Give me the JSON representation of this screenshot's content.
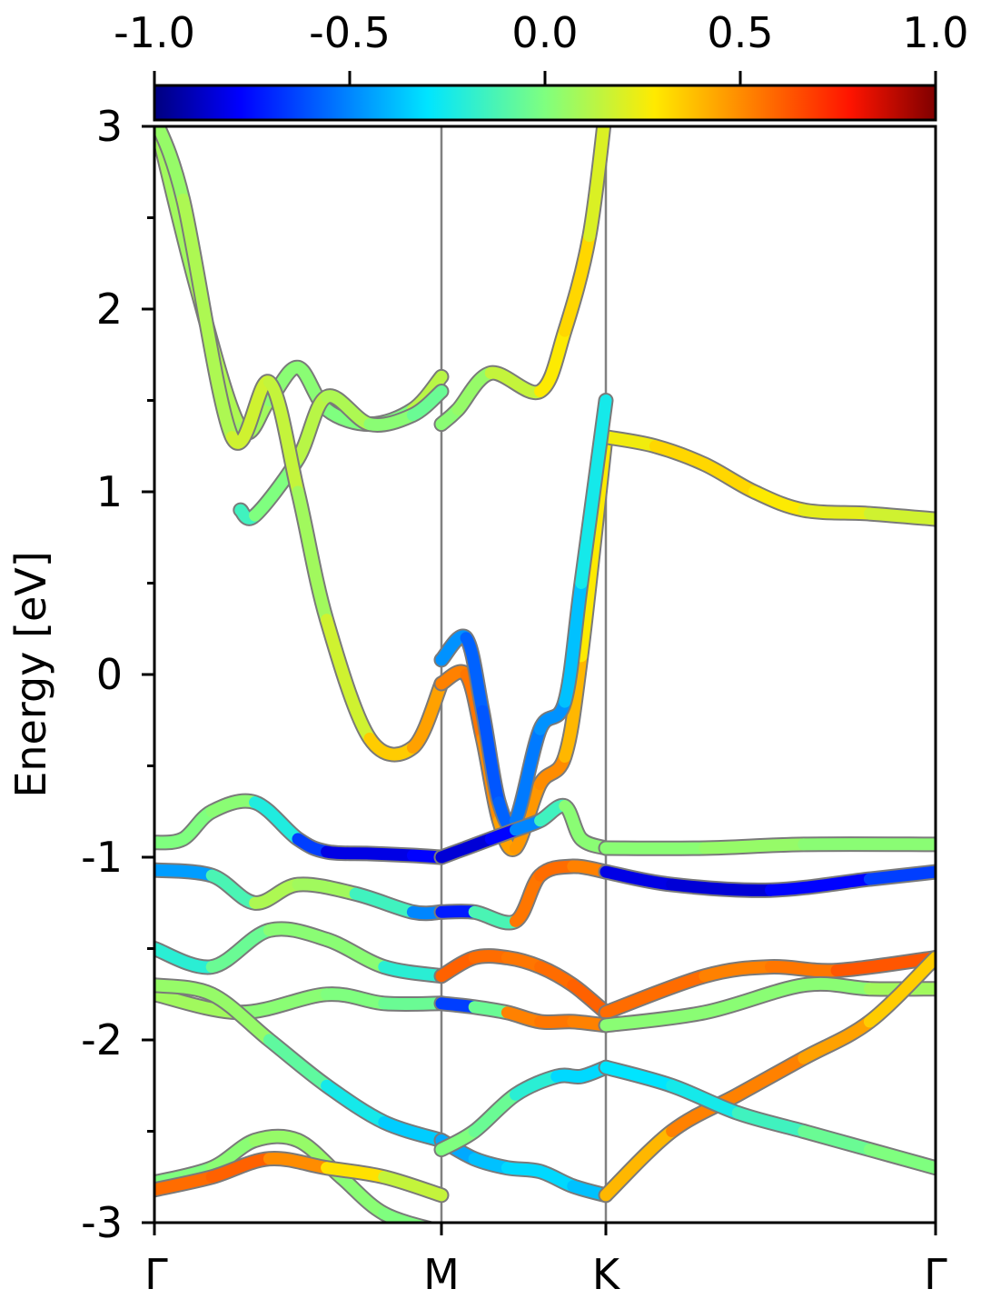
{
  "chart_data": {
    "type": "line",
    "ylabel": "Energy [eV]",
    "xlabel": "",
    "ylim": [
      -3,
      3
    ],
    "y_ticks": [
      "3",
      "2",
      "1",
      "0",
      "-1",
      "-2",
      "-3"
    ],
    "k_path": [
      "Γ",
      "M",
      "K",
      "Γ"
    ],
    "grid": false,
    "colorbar": {
      "colormap": "jet",
      "range": [
        -1.0,
        1.0
      ],
      "ticks": [
        "-1.0",
        "-0.5",
        "0.0",
        "0.5",
        "1.0"
      ]
    },
    "series": [
      {
        "k": [
          0,
          0.15,
          0.3,
          0.4,
          0.5,
          0.6,
          0.75,
          0.9,
          1
        ],
        "energy": [
          3.05,
          2.1,
          1.35,
          1.5,
          1.68,
          1.45,
          1.37,
          1.45,
          1.63
        ],
        "spin": [
          0.05,
          0.1,
          0.1,
          0.05,
          0,
          0.05,
          -0.05,
          0.05,
          0.2
        ]
      },
      {
        "k": [
          0.3,
          0.35,
          0.5,
          0.6,
          0.75,
          0.9,
          1.0
        ],
        "energy": [
          0.9,
          0.87,
          1.18,
          1.52,
          1.37,
          1.42,
          1.55
        ],
        "spin": [
          -0.2,
          -0.1,
          0.1,
          0.15,
          0.05,
          0,
          -0.1
        ]
      },
      {
        "k": [
          1.0,
          1.1,
          1.3,
          1.6,
          1.75,
          1.9,
          2.0
        ],
        "energy": [
          1.37,
          1.45,
          1.65,
          1.55,
          1.88,
          2.4,
          3.1
        ],
        "spin": [
          0.05,
          0,
          0.1,
          0.2,
          0.35,
          0.3,
          0.1
        ]
      },
      {
        "k": [
          0,
          0.1,
          0.27,
          0.4,
          0.5,
          0.6,
          0.75,
          0.9,
          1
        ],
        "energy": [
          3.05,
          2.6,
          1.3,
          1.6,
          1.0,
          0.3,
          -0.35,
          -0.4,
          -0.05
        ],
        "spin": [
          0.05,
          0.05,
          0.15,
          0.2,
          0.1,
          0.05,
          0.3,
          0.4,
          0.5
        ]
      },
      {
        "k": [
          1.0,
          1.15,
          1.25,
          1.35,
          1.45,
          1.6,
          1.75,
          1.85,
          2.0
        ],
        "energy": [
          -0.05,
          0.0,
          -0.35,
          -0.8,
          -0.95,
          -0.6,
          -0.45,
          0.1,
          1.3
        ],
        "spin": [
          0.5,
          0.55,
          0.55,
          0.45,
          0.45,
          0.5,
          0.5,
          0.3,
          0.25
        ]
      },
      {
        "k": [
          2.0,
          2.15,
          2.3,
          2.45,
          2.6,
          2.8,
          3.0
        ],
        "energy": [
          1.3,
          1.25,
          1.15,
          1.0,
          0.9,
          0.88,
          0.85
        ],
        "spin": [
          0.2,
          0.3,
          0.35,
          0.3,
          0.25,
          0.2,
          0.15
        ]
      },
      {
        "k": [
          1.0,
          1.15,
          1.25,
          1.35,
          1.45,
          1.6,
          1.75,
          1.85,
          2.0
        ],
        "energy": [
          0.08,
          0.2,
          -0.2,
          -0.7,
          -0.8,
          -0.3,
          -0.15,
          0.5,
          1.5
        ],
        "spin": [
          -0.4,
          -0.55,
          -0.6,
          -0.6,
          -0.55,
          -0.5,
          -0.45,
          -0.3,
          -0.2
        ]
      },
      {
        "k": [
          0,
          0.1,
          0.2,
          0.35,
          0.5,
          0.6,
          0.75,
          0.9,
          1.0
        ],
        "energy": [
          -0.92,
          -0.9,
          -0.75,
          -0.7,
          -0.9,
          -0.97,
          -0.98,
          -0.99,
          -1.0
        ],
        "spin": [
          0.0,
          0.0,
          0.0,
          0.05,
          -0.5,
          -0.8,
          -0.85,
          -0.8,
          -0.75
        ]
      },
      {
        "k": [
          1.0,
          1.15,
          1.3,
          1.45,
          1.6,
          1.75,
          1.85,
          2.0
        ],
        "energy": [
          -1.0,
          -0.95,
          -0.9,
          -0.85,
          -0.8,
          -0.72,
          -0.9,
          -0.95
        ],
        "spin": [
          -0.85,
          -0.85,
          -0.85,
          -0.7,
          -0.3,
          0.0,
          0.05,
          0.0
        ]
      },
      {
        "k": [
          2.0,
          2.3,
          2.6,
          3.0
        ],
        "energy": [
          -0.95,
          -0.95,
          -0.93,
          -0.93
        ],
        "spin": [
          0.0,
          0.05,
          0.05,
          0.0
        ]
      },
      {
        "k": [
          0,
          0.2,
          0.35,
          0.5,
          0.7,
          0.9,
          1.0
        ],
        "energy": [
          -1.07,
          -1.1,
          -1.25,
          -1.15,
          -1.2,
          -1.3,
          -1.3
        ],
        "spin": [
          -0.6,
          -0.3,
          0.05,
          0.15,
          0.0,
          -0.3,
          -0.7
        ]
      },
      {
        "k": [
          1.0,
          1.2,
          1.45,
          1.6,
          1.8,
          2.0
        ],
        "energy": [
          -1.3,
          -1.3,
          -1.35,
          -1.1,
          -1.05,
          -1.08
        ],
        "spin": [
          -0.7,
          -0.75,
          0.5,
          0.6,
          0.55,
          0.5
        ]
      },
      {
        "k": [
          2.0,
          2.2,
          2.5,
          2.8,
          3.0
        ],
        "energy": [
          -1.08,
          -1.15,
          -1.18,
          -1.12,
          -1.08
        ],
        "spin": [
          -0.8,
          -0.85,
          -0.85,
          -0.7,
          -0.6
        ]
      },
      {
        "k": [
          0,
          0.2,
          0.4,
          0.6,
          0.8,
          1.0
        ],
        "energy": [
          -1.5,
          -1.6,
          -1.4,
          -1.45,
          -1.6,
          -1.65
        ],
        "spin": [
          -0.3,
          -0.1,
          0.0,
          0.05,
          0.0,
          -0.4
        ]
      },
      {
        "k": [
          1.0,
          1.2,
          1.4,
          1.6,
          1.8,
          2.0
        ],
        "energy": [
          -1.65,
          -1.55,
          -1.55,
          -1.6,
          -1.7,
          -1.85
        ],
        "spin": [
          0.6,
          0.6,
          0.55,
          0.55,
          0.6,
          0.6
        ]
      },
      {
        "k": [
          2.0,
          2.3,
          2.5,
          2.7,
          3.0
        ],
        "energy": [
          -1.85,
          -1.65,
          -1.6,
          -1.62,
          -1.55
        ],
        "spin": [
          0.6,
          0.55,
          0.5,
          0.6,
          0.65
        ]
      },
      {
        "k": [
          0,
          0.3,
          0.6,
          0.8,
          1.0
        ],
        "energy": [
          -1.75,
          -1.85,
          -1.75,
          -1.8,
          -1.8
        ],
        "spin": [
          0.1,
          0.05,
          0.0,
          0.0,
          -0.1
        ]
      },
      {
        "k": [
          1.0,
          1.2,
          1.4,
          1.6,
          1.8,
          2.0
        ],
        "energy": [
          -1.8,
          -1.82,
          -1.85,
          -1.9,
          -1.9,
          -1.92
        ],
        "spin": [
          -0.7,
          -0.6,
          0.5,
          0.55,
          0.55,
          0.5
        ]
      },
      {
        "k": [
          2.0,
          2.3,
          2.6,
          2.8,
          3.0
        ],
        "energy": [
          -1.92,
          -1.85,
          -1.7,
          -1.72,
          -1.72
        ],
        "spin": [
          0.0,
          0.05,
          0.0,
          0.05,
          0.1
        ]
      },
      {
        "k": [
          0,
          0.2,
          0.4,
          0.6,
          0.8,
          1.0
        ],
        "energy": [
          -1.7,
          -1.75,
          -2.0,
          -2.25,
          -2.45,
          -2.55
        ],
        "spin": [
          0.05,
          0.05,
          0.05,
          -0.2,
          -0.3,
          -0.4
        ]
      },
      {
        "k": [
          1.0,
          1.2,
          1.4,
          1.6,
          1.8,
          2.0
        ],
        "energy": [
          -2.55,
          -2.65,
          -2.7,
          -2.72,
          -2.8,
          -2.85
        ],
        "spin": [
          -0.45,
          -0.4,
          -0.35,
          -0.3,
          -0.35,
          -0.4
        ]
      },
      {
        "k": [
          2.0,
          2.2,
          2.4,
          2.6,
          2.8,
          3.0
        ],
        "energy": [
          -2.85,
          -2.5,
          -2.3,
          -2.1,
          -1.9,
          -1.55
        ],
        "spin": [
          0.3,
          0.5,
          0.55,
          0.5,
          0.4,
          0.3
        ]
      },
      {
        "k": [
          0,
          0.2,
          0.35,
          0.5,
          0.65,
          0.8,
          1.0
        ],
        "energy": [
          -2.78,
          -2.7,
          -2.55,
          -2.55,
          -2.75,
          -2.95,
          -3.05
        ],
        "spin": [
          0.0,
          0.0,
          0.05,
          0.05,
          0.05,
          0.0,
          0.0
        ]
      },
      {
        "k": [
          1.0,
          1.2,
          1.45,
          1.7,
          1.85,
          2.0
        ],
        "energy": [
          -2.6,
          -2.5,
          -2.3,
          -2.2,
          -2.2,
          -2.15
        ],
        "spin": [
          0.0,
          0.0,
          -0.1,
          -0.3,
          -0.35,
          -0.3
        ]
      },
      {
        "k": [
          2.0,
          2.2,
          2.4,
          2.6,
          2.8,
          3.0
        ],
        "energy": [
          -2.15,
          -2.25,
          -2.4,
          -2.5,
          -2.6,
          -2.7
        ],
        "spin": [
          -0.3,
          -0.3,
          -0.2,
          -0.1,
          0.0,
          0.0
        ]
      },
      {
        "k": [
          0,
          0.2,
          0.4,
          0.6,
          0.8,
          1.0
        ],
        "energy": [
          -2.82,
          -2.75,
          -2.65,
          -2.7,
          -2.75,
          -2.85
        ],
        "spin": [
          0.55,
          0.6,
          0.6,
          0.4,
          0.2,
          0.1
        ]
      }
    ]
  }
}
